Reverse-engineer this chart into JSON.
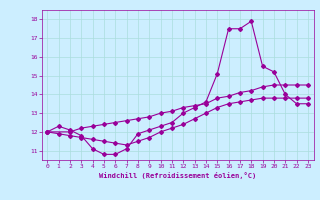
{
  "xlabel": "Windchill (Refroidissement éolien,°C)",
  "bg_color": "#cceeff",
  "line_color": "#990099",
  "grid_color": "#aadddd",
  "xlim": [
    -0.5,
    23.5
  ],
  "ylim": [
    10.5,
    18.5
  ],
  "xticks": [
    0,
    1,
    2,
    3,
    4,
    5,
    6,
    7,
    8,
    9,
    10,
    11,
    12,
    13,
    14,
    15,
    16,
    17,
    18,
    19,
    20,
    21,
    22,
    23
  ],
  "yticks": [
    11,
    12,
    13,
    14,
    15,
    16,
    17,
    18
  ],
  "series1_x": [
    0,
    1,
    2,
    3,
    4,
    5,
    6,
    7,
    8,
    9,
    10,
    11,
    12,
    13,
    14,
    15,
    16,
    17,
    18,
    19,
    20,
    21,
    22,
    23
  ],
  "series1_y": [
    12.0,
    12.3,
    12.1,
    11.8,
    11.1,
    10.8,
    10.8,
    11.1,
    11.9,
    12.1,
    12.3,
    12.5,
    13.0,
    13.3,
    13.6,
    15.1,
    17.5,
    17.5,
    17.9,
    15.5,
    15.2,
    14.0,
    13.5,
    13.5
  ],
  "series2_x": [
    0,
    1,
    2,
    3,
    4,
    5,
    6,
    7,
    8,
    9,
    10,
    11,
    12,
    13,
    14,
    15,
    16,
    17,
    18,
    19,
    20,
    21,
    22,
    23
  ],
  "series2_y": [
    12.0,
    11.9,
    11.8,
    11.7,
    11.6,
    11.5,
    11.4,
    11.3,
    11.5,
    11.7,
    12.0,
    12.2,
    12.4,
    12.7,
    13.0,
    13.3,
    13.5,
    13.6,
    13.7,
    13.8,
    13.8,
    13.8,
    13.8,
    13.8
  ],
  "series3_x": [
    0,
    2,
    3,
    4,
    5,
    6,
    7,
    8,
    9,
    10,
    11,
    12,
    13,
    14,
    15,
    16,
    17,
    18,
    19,
    20,
    21,
    22,
    23
  ],
  "series3_y": [
    12.0,
    12.0,
    12.2,
    12.3,
    12.4,
    12.5,
    12.6,
    12.7,
    12.8,
    13.0,
    13.1,
    13.3,
    13.4,
    13.5,
    13.8,
    13.9,
    14.1,
    14.2,
    14.4,
    14.5,
    14.5,
    14.5,
    14.5
  ]
}
